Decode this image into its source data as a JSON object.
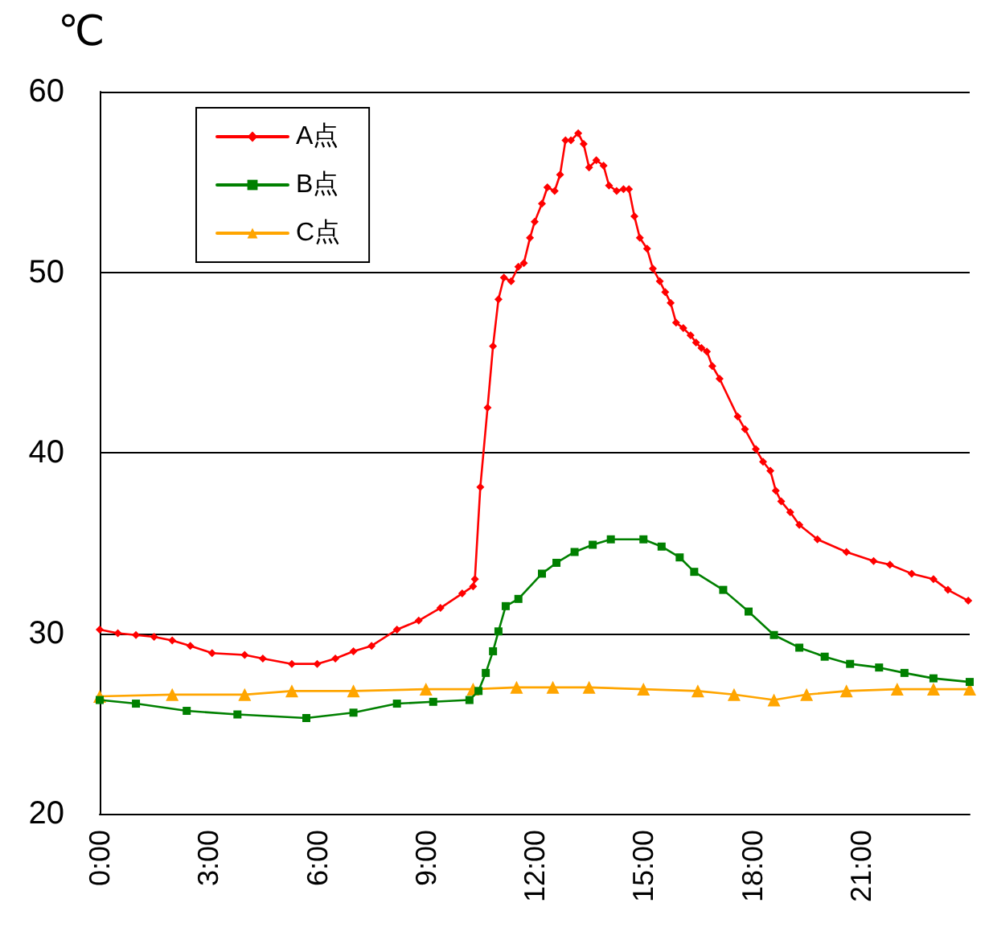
{
  "chart_data": {
    "type": "line",
    "ylabel": "℃",
    "xlim": [
      0,
      24
    ],
    "ylim": [
      20,
      60
    ],
    "yticks": [
      20,
      30,
      40,
      50,
      60
    ],
    "xticks": [
      {
        "value": 0,
        "label": "0:00"
      },
      {
        "value": 3,
        "label": "3:00"
      },
      {
        "value": 6,
        "label": "6:00"
      },
      {
        "value": 9,
        "label": "9:00"
      },
      {
        "value": 12,
        "label": "12:00"
      },
      {
        "value": 15,
        "label": "15:00"
      },
      {
        "value": 18,
        "label": "18:00"
      },
      {
        "value": 21,
        "label": "21:00"
      }
    ],
    "grid": "y",
    "legend": "top left",
    "line_style": "solid",
    "series": [
      {
        "name": "A点",
        "color": "#ff0000",
        "marker": "diamond",
        "x": [
          0,
          0.5,
          1,
          1.5,
          2,
          2.5,
          3.1,
          4,
          4.5,
          5.3,
          6.0,
          6.5,
          7,
          7.5,
          8.2,
          8.8,
          9.4,
          10.0,
          10.3,
          10.35,
          10.5,
          10.7,
          10.85,
          11.0,
          11.15,
          11.35,
          11.55,
          11.7,
          11.87,
          12.0,
          12.2,
          12.35,
          12.55,
          12.7,
          12.85,
          13.0,
          13.2,
          13.35,
          13.5,
          13.7,
          13.9,
          14.05,
          14.26,
          14.45,
          14.6,
          14.75,
          14.9,
          15.1,
          15.26,
          15.45,
          15.6,
          15.75,
          15.9,
          16.1,
          16.3,
          16.45,
          16.6,
          16.75,
          16.9,
          17.1,
          17.6,
          17.8,
          18.1,
          18.3,
          18.5,
          18.65,
          18.8,
          19.05,
          19.3,
          19.8,
          20.6,
          21.35,
          21.8,
          22.4,
          23.0,
          23.4,
          23.96
        ],
        "values": [
          30.2,
          30.0,
          29.9,
          29.8,
          29.6,
          29.3,
          28.9,
          28.8,
          28.6,
          28.3,
          28.3,
          28.6,
          29.0,
          29.3,
          30.2,
          30.7,
          31.4,
          32.2,
          32.6,
          33.0,
          38.1,
          42.5,
          45.9,
          48.5,
          49.7,
          49.5,
          50.3,
          50.5,
          51.9,
          52.8,
          53.8,
          54.7,
          54.5,
          55.4,
          57.3,
          57.3,
          57.7,
          57.1,
          55.8,
          56.2,
          55.9,
          54.8,
          54.5,
          54.6,
          54.6,
          53.1,
          51.9,
          51.3,
          50.2,
          49.5,
          48.9,
          48.3,
          47.2,
          46.9,
          46.5,
          46.1,
          45.8,
          45.6,
          44.8,
          44.1,
          42.0,
          41.3,
          40.2,
          39.5,
          39.0,
          37.9,
          37.3,
          36.7,
          36.0,
          35.2,
          34.5,
          34.0,
          33.8,
          33.3,
          33.0,
          32.4,
          31.8
        ]
      },
      {
        "name": "B点",
        "color": "#008000",
        "marker": "square",
        "x": [
          0,
          1,
          2.4,
          3.8,
          5.7,
          7.0,
          8.2,
          9.2,
          10.2,
          10.45,
          10.65,
          10.85,
          11.0,
          11.2,
          11.55,
          12.2,
          12.6,
          13.1,
          13.6,
          14.1,
          15.0,
          15.5,
          16.0,
          16.4,
          17.2,
          17.9,
          18.6,
          19.3,
          20.0,
          20.7,
          21.5,
          22.2,
          23.0,
          24.0
        ],
        "values": [
          26.3,
          26.1,
          25.7,
          25.5,
          25.3,
          25.6,
          26.1,
          26.2,
          26.3,
          26.8,
          27.8,
          29.0,
          30.1,
          31.5,
          31.9,
          33.3,
          33.9,
          34.5,
          34.9,
          35.2,
          35.2,
          34.8,
          34.2,
          33.4,
          32.4,
          31.2,
          29.9,
          29.2,
          28.7,
          28.3,
          28.1,
          27.8,
          27.5,
          27.3
        ]
      },
      {
        "name": "C点",
        "color": "#ffa500",
        "marker": "triangle",
        "x": [
          0,
          2,
          4,
          5.3,
          7,
          9,
          10.3,
          11.5,
          12.5,
          13.5,
          15,
          16.5,
          17.5,
          18.6,
          19.5,
          20.6,
          22,
          23,
          24
        ],
        "values": [
          26.5,
          26.6,
          26.6,
          26.8,
          26.8,
          26.9,
          26.9,
          27.0,
          27.0,
          27.0,
          26.9,
          26.8,
          26.6,
          26.3,
          26.6,
          26.8,
          26.9,
          26.9,
          26.9
        ]
      }
    ]
  }
}
